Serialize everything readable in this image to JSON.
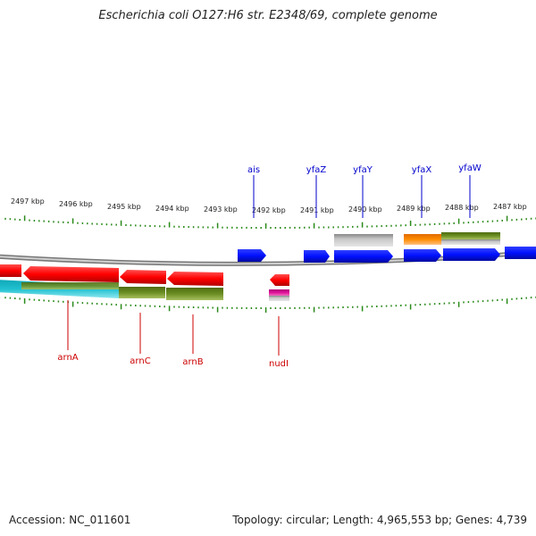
{
  "title": "Escherichia coli O127:H6 str. E2348/69, complete genome",
  "footer": {
    "accession": "Accession: NC_011601",
    "topology": "Topology: circular; Length: 4,965,553 bp; Genes: 4,739"
  },
  "scale_labels": [
    "2497 kbp",
    "2496 kbp",
    "2495 kbp",
    "2494 kbp",
    "2493 kbp",
    "2492 kbp",
    "2491 kbp",
    "2490 kbp",
    "2489 kbp",
    "2488 kbp",
    "2487 kbp"
  ],
  "top_gene_labels": [
    "ais",
    "yfaZ",
    "yfaY",
    "yfaX",
    "yfaW"
  ],
  "bottom_gene_labels": [
    "arnA",
    "arnC",
    "arnB",
    "nudI"
  ],
  "colors": {
    "forward_gene": "#0010ff",
    "reverse_gene": "#ff0000",
    "tick": "#2a8a1a",
    "top_label": "#0000cc",
    "bottom_label": "#cc0000",
    "backbone": "#888888",
    "olive_feature": "#6b8e23",
    "orange_feature": "#ff8c00",
    "cyan_feature": "#20c0d0",
    "magenta_feature": "#e0109a",
    "grey_feature": "#b0b0b0"
  }
}
